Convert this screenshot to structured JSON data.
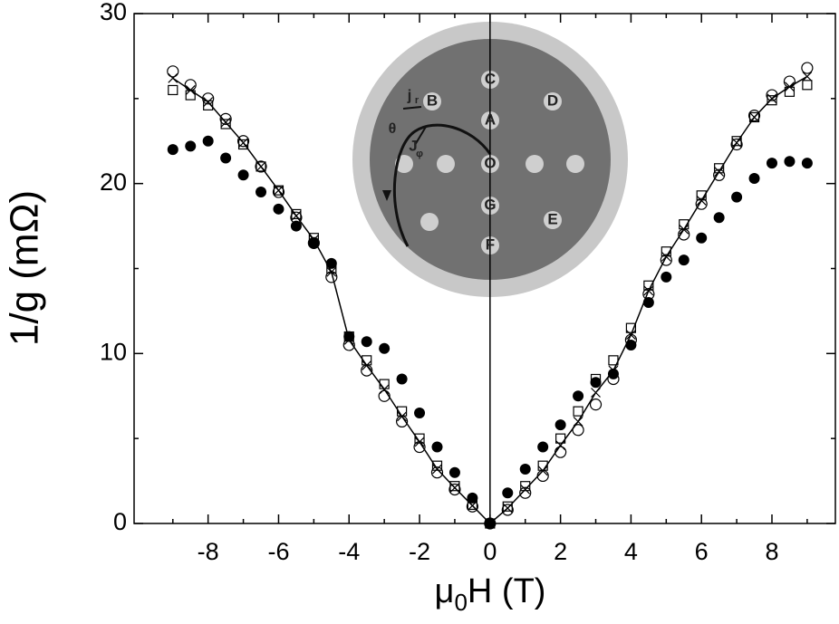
{
  "chart_data": {
    "type": "scatter",
    "xlabel": [
      "μ",
      "0",
      "H (T)"
    ],
    "ylabel": "1/g (mΩ)",
    "xlim": [
      -10.1,
      9.8
    ],
    "ylim": [
      0,
      30
    ],
    "xticks": [
      -8,
      -6,
      -4,
      -2,
      0,
      2,
      4,
      6,
      8
    ],
    "xminorticks": [
      -9,
      -7,
      -5,
      -3,
      -1,
      1,
      3,
      5,
      7,
      9
    ],
    "yticks": [
      0,
      10,
      20,
      30
    ],
    "yminorticks": [
      5,
      15,
      25
    ],
    "x": [
      -9,
      -8.5,
      -8,
      -7.5,
      -7,
      -6.5,
      -6,
      -5.5,
      -5,
      -4.5,
      -4,
      -3.5,
      -3,
      -2.5,
      -2,
      -1.5,
      -1,
      -0.5,
      0,
      0.5,
      1,
      1.5,
      2,
      2.5,
      3,
      3.5,
      4,
      4.5,
      5,
      5.5,
      6,
      6.5,
      7,
      7.5,
      8,
      8.5,
      9
    ],
    "series": [
      {
        "marker": "filled-circle",
        "color": "#000000",
        "values": [
          22,
          22.2,
          22.5,
          21.5,
          20.5,
          19.5,
          18.5,
          17.5,
          16.5,
          15.3,
          11,
          10.7,
          10.3,
          8.5,
          6.5,
          4.5,
          3,
          1.5,
          0,
          1.8,
          3.2,
          4.5,
          5.8,
          7.5,
          8.3,
          8.8,
          10.5,
          13,
          14.5,
          15.5,
          16.8,
          18,
          19.2,
          20.3,
          21.2,
          21.3,
          21.2
        ]
      },
      {
        "marker": "open-circle",
        "color": "#000000",
        "values": [
          26.6,
          25.8,
          25,
          23.8,
          22.5,
          21,
          19.5,
          18,
          16.5,
          14.5,
          10.5,
          9,
          7.5,
          6,
          4.5,
          3,
          2,
          1,
          0,
          0.8,
          1.8,
          2.8,
          4.2,
          5.5,
          7,
          8.5,
          10.8,
          13.5,
          15.5,
          17,
          18.8,
          20.5,
          22.3,
          24,
          25.2,
          26,
          26.8
        ]
      },
      {
        "marker": "open-square",
        "color": "#000000",
        "values": [
          25.5,
          25.2,
          24.6,
          23.5,
          22.3,
          21,
          19.6,
          18.2,
          16.8,
          15,
          11,
          9.6,
          8.2,
          6.6,
          5,
          3.4,
          2.2,
          1.1,
          0,
          1,
          2.2,
          3.4,
          5,
          6.6,
          8.5,
          9.6,
          11.5,
          14,
          16,
          17.6,
          19.3,
          20.9,
          22.5,
          23.9,
          24.9,
          25.4,
          25.8
        ]
      },
      {
        "marker": "cross",
        "color": "#000000",
        "values": [
          26.2,
          25.5,
          24.8,
          23.6,
          22.4,
          21,
          19.6,
          18.1,
          16.7,
          14.8,
          10.8,
          9.3,
          7.9,
          6.3,
          4.8,
          3.2,
          2.1,
          1.05,
          0,
          0.9,
          2,
          3.1,
          4.6,
          6,
          7.7,
          9,
          11.1,
          13.7,
          15.7,
          17.3,
          19,
          20.7,
          22.4,
          23.9,
          25,
          25.7,
          26.3
        ]
      }
    ],
    "inset_labels": [
      "C",
      "D",
      "B",
      "A",
      "O",
      "G",
      "E",
      "F",
      "j",
      "r",
      "θ",
      "J",
      "φ"
    ]
  }
}
